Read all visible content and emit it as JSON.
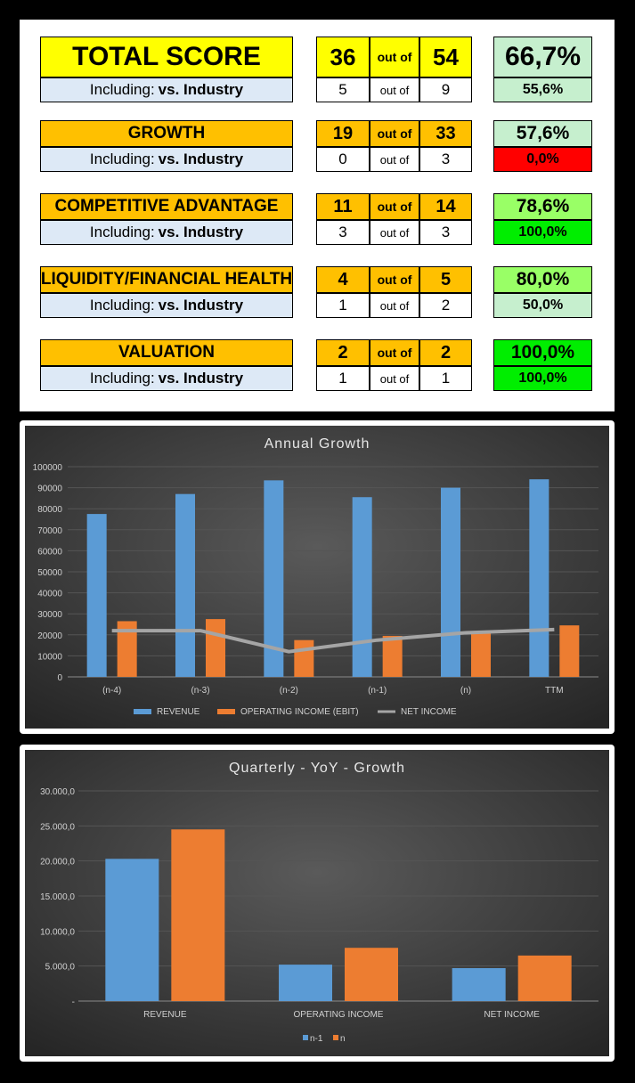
{
  "scorecard": {
    "rows": [
      {
        "id": "total",
        "label": "TOTAL SCORE",
        "score": "36",
        "out_of": "out of",
        "max": "54",
        "pct": "66,7%",
        "pct_color": "#c6efce",
        "sub": {
          "prefix": "Including:",
          "emph": "vs. Industry",
          "score": "5",
          "out_of": "out of",
          "max": "9",
          "pct": "55,6%",
          "pct_color": "#c6efce"
        }
      },
      {
        "id": "growth",
        "label": "GROWTH",
        "score": "19",
        "out_of": "out of",
        "max": "33",
        "pct": "57,6%",
        "pct_color": "#c6efce",
        "sub": {
          "prefix": "Including:",
          "emph": "vs. Industry",
          "score": "0",
          "out_of": "out of",
          "max": "3",
          "pct": "0,0%",
          "pct_color": "#ff0000"
        }
      },
      {
        "id": "competitive",
        "label": "COMPETITIVE ADVANTAGE",
        "score": "11",
        "out_of": "out of",
        "max": "14",
        "pct": "78,6%",
        "pct_color": "#99ff66",
        "sub": {
          "prefix": "Including:",
          "emph": "vs. Industry",
          "score": "3",
          "out_of": "out of",
          "max": "3",
          "pct": "100,0%",
          "pct_color": "#00ee00"
        }
      },
      {
        "id": "liquidity",
        "label": "LIQUIDITY/FINANCIAL HEALTH",
        "score": "4",
        "out_of": "out of",
        "max": "5",
        "pct": "80,0%",
        "pct_color": "#99ff66",
        "sub": {
          "prefix": "Including:",
          "emph": "vs. Industry",
          "score": "1",
          "out_of": "out of",
          "max": "2",
          "pct": "50,0%",
          "pct_color": "#c6efce"
        }
      },
      {
        "id": "valuation",
        "label": "VALUATION",
        "score": "2",
        "out_of": "out of",
        "max": "2",
        "pct": "100,0%",
        "pct_color": "#00ee00",
        "sub": {
          "prefix": "Including:",
          "emph": "vs. Industry",
          "score": "1",
          "out_of": "out of",
          "max": "1",
          "pct": "100,0%",
          "pct_color": "#00ee00"
        }
      }
    ]
  },
  "chart_data": [
    {
      "type": "bar",
      "title": "Annual Growth",
      "categories": [
        "(n-4)",
        "(n-3)",
        "(n-2)",
        "(n-1)",
        "(n)",
        "TTM"
      ],
      "series": [
        {
          "name": "REVENUE",
          "type": "bar",
          "color": "#5b9bd5",
          "values": [
            77500,
            87000,
            93500,
            85500,
            90000,
            94000
          ]
        },
        {
          "name": "OPERATING INCOME (EBIT)",
          "type": "bar",
          "color": "#ed7d31",
          "values": [
            26500,
            27500,
            17500,
            19500,
            21000,
            24500
          ]
        },
        {
          "name": "NET INCOME",
          "type": "line",
          "color": "#a5a5a5",
          "values": [
            22000,
            22000,
            12000,
            17500,
            21000,
            22500
          ]
        }
      ],
      "ylim": [
        0,
        100000
      ],
      "yticks": [
        "0",
        "10000",
        "20000",
        "30000",
        "40000",
        "50000",
        "60000",
        "70000",
        "80000",
        "90000",
        "100000"
      ],
      "grid": true,
      "legend": "bottom"
    },
    {
      "type": "bar",
      "title": "Quarterly - YoY - Growth",
      "categories": [
        "REVENUE",
        "OPERATING INCOME",
        "NET INCOME"
      ],
      "series": [
        {
          "name": "n-1",
          "color": "#5b9bd5",
          "values": [
            20300,
            5200,
            4700
          ]
        },
        {
          "name": "n",
          "color": "#ed7d31",
          "values": [
            24500,
            7600,
            6500
          ]
        }
      ],
      "ylim": [
        0,
        30000
      ],
      "yticks": [
        "-",
        "5.000,0",
        "10.000,0",
        "15.000,0",
        "20.000,0",
        "25.000,0",
        "30.000,0"
      ],
      "grid": true,
      "legend": "bottom"
    }
  ]
}
